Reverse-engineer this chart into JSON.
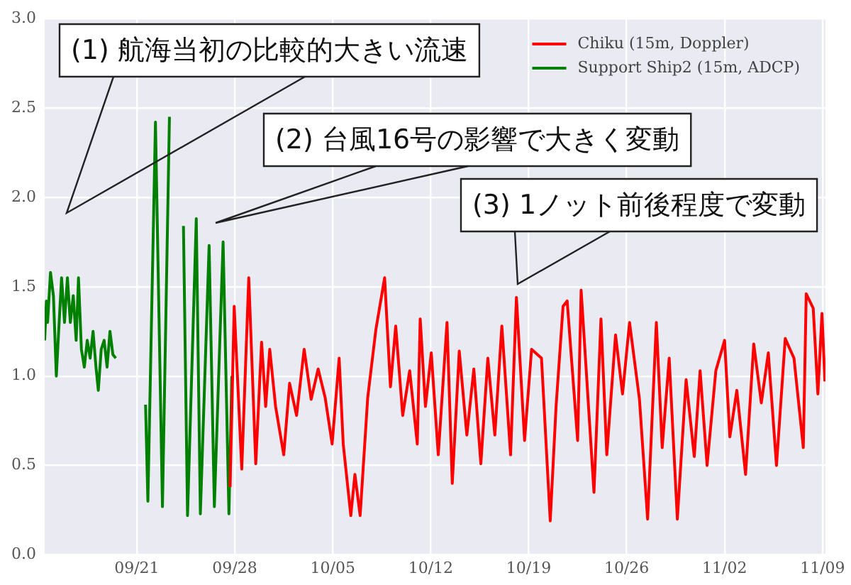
{
  "chart_data": {
    "type": "line",
    "xlim": [
      "--09-14T10:00",
      "--11-09T05:00"
    ],
    "xticks": [
      {
        "value": "--09-21",
        "label": "09/21"
      },
      {
        "value": "--09-28",
        "label": "09/28"
      },
      {
        "value": "--10-05",
        "label": "10/05"
      },
      {
        "value": "--10-12",
        "label": "10/12"
      },
      {
        "value": "--10-19",
        "label": "10/19"
      },
      {
        "value": "--10-26",
        "label": "10/26"
      },
      {
        "value": "--11-02",
        "label": "11/02"
      },
      {
        "value": "--11-09",
        "label": "11/09"
      }
    ],
    "ylim": [
      0,
      3
    ],
    "yticks": [
      {
        "value": 0,
        "label": "0.0"
      },
      {
        "value": 0.5,
        "label": "0.5"
      },
      {
        "value": 1,
        "label": "1.0"
      },
      {
        "value": 1.5,
        "label": "1.5"
      },
      {
        "value": 2,
        "label": "2.0"
      },
      {
        "value": 2.5,
        "label": "2.5"
      },
      {
        "value": 3,
        "label": "3.0"
      }
    ],
    "grid": true,
    "legend": "top right",
    "series": [
      {
        "name": "Chiku (15m, Doppler)",
        "color": "#ff0000",
        "x": [
          "--09-27T16:00",
          "--09-27T23:00",
          "--09-28T12:00",
          "--09-29T00:00",
          "--09-29T12:00",
          "--09-29T22:00",
          "--09-30T05:00",
          "--09-30T12:00",
          "--09-30T22:00",
          "--10-01T12:00",
          "--10-01T22:00",
          "--10-02T10:00",
          "--10-02T23:00",
          "--10-03T11:00",
          "--10-03T23:00",
          "--10-04T11:00",
          "--10-04T23:00",
          "--10-05T11:00",
          "--10-05T18:00",
          "--10-06T07:00",
          "--10-06T14:00",
          "--10-06T23:00",
          "--10-07T12:00",
          "--10-08T02:00",
          "--10-08T17:00",
          "--10-09T03:00",
          "--10-09T12:00",
          "--10-10T00:00",
          "--10-10T12:00",
          "--10-11T01:00",
          "--10-11T06:00",
          "--10-11T15:00",
          "--10-12T01:00",
          "--10-12T13:00",
          "--10-13T04:00",
          "--10-13T13:00",
          "--10-14T01:00",
          "--10-14T14:00",
          "--10-15T02:00",
          "--10-15T14:00",
          "--10-16T02:00",
          "--10-16T14:00",
          "--10-17T02:00",
          "--10-17T17:00",
          "--10-18T03:00",
          "--10-18T17:00",
          "--10-19T05:00",
          "--10-19T22:00",
          "--10-20T13:00",
          "--10-20T23:00",
          "--10-21T11:00",
          "--10-21T18:00",
          "--10-22T12:00",
          "--10-22T18:00",
          "--10-23T16:00",
          "--10-24T04:00",
          "--10-24T14:00",
          "--10-25T05:00",
          "--10-25T17:00",
          "--10-26T05:00",
          "--10-26T22:00",
          "--10-27T12:00",
          "--10-28T03:00",
          "--10-28T13:00",
          "--10-29T01:00",
          "--10-29T15:00",
          "--10-30T06:00",
          "--10-30T20:00",
          "--10-31T06:00",
          "--10-31T18:00",
          "--11-01T09:00",
          "--11-02T00:00",
          "--11-02T09:00",
          "--11-02T21:00",
          "--11-03T12:00",
          "--11-04T02:00",
          "--11-04T15:00",
          "--11-05T03:00",
          "--11-05T17:00",
          "--11-06T08:00",
          "--11-06T23:00",
          "--11-07T15:00",
          "--11-07T20:00",
          "--11-08T08:00",
          "--11-08T16:00",
          "--11-08T23:00",
          "--11-09T04:00"
        ],
        "values": [
          0.38,
          1.39,
          0.48,
          1.55,
          0.51,
          1.19,
          0.83,
          1.15,
          0.83,
          0.56,
          0.96,
          0.78,
          1.15,
          0.87,
          1.04,
          0.88,
          0.62,
          1.1,
          0.62,
          0.22,
          0.45,
          0.22,
          0.88,
          1.26,
          1.55,
          0.94,
          1.28,
          0.78,
          1.03,
          0.62,
          1.32,
          0.83,
          1.13,
          0.56,
          1.3,
          0.4,
          1.14,
          0.67,
          1.04,
          0.51,
          1.1,
          0.67,
          1.28,
          0.56,
          1.44,
          0.64,
          1.15,
          1.1,
          0.19,
          0.83,
          1.39,
          1.42,
          0.64,
          1.48,
          0.35,
          1.32,
          0.56,
          1.23,
          0.9,
          1.3,
          0.87,
          0.2,
          1.3,
          0.6,
          1.1,
          0.2,
          0.98,
          0.55,
          1.03,
          0.5,
          1.03,
          1.2,
          0.66,
          0.92,
          0.45,
          1.18,
          0.85,
          1.13,
          0.5,
          1.21,
          1.1,
          0.6,
          1.46,
          1.38,
          0.9,
          1.35,
          0.97
        ]
      },
      {
        "name": "Support Ship2 (15m, ADCP)",
        "color": "#008000",
        "x": [
          "--09-14T10:00",
          "--09-14T13:00",
          "--09-14T15:00",
          "--09-14T20:00",
          "--09-15T01:00",
          "--09-15T06:00",
          "--09-15T10:00",
          "--09-15T15:00",
          "--09-15T20:00",
          "--09-16T01:00",
          "--09-16T06:00",
          "--09-16T11:00",
          "--09-16T16:00",
          "--09-16T20:00",
          "--09-17T01:00",
          "--09-17T06:00",
          "--09-17T11:00",
          "--09-17T16:00",
          "--09-17T21:00",
          "--09-18T02:00",
          "--09-18T06:00",
          "--09-18T11:00",
          "--09-18T16:00",
          "--09-18T21:00",
          "--09-19T02:00",
          "--09-19T07:00",
          "--09-19T12:00",
          "--09-20T12:00",
          "--09-21T15:00",
          "--09-21T19:00",
          "--09-22T08:00",
          "--09-22T20:00",
          "--09-23T08:00",
          "--09-23T20:00",
          "--09-24T08:00",
          "--09-24T15:00",
          "--09-25T06:00",
          "--09-25T13:00",
          "--09-26T04:00",
          "--09-26T13:00",
          "--09-27T04:00",
          "--09-27T14:00",
          "--09-27T19:00"
        ],
        "values": [
          1.2,
          1.42,
          1.3,
          1.58,
          1.45,
          1.0,
          1.25,
          1.55,
          1.3,
          1.55,
          1.3,
          1.45,
          1.2,
          1.55,
          1.15,
          1.05,
          1.2,
          1.1,
          1.25,
          1.05,
          0.92,
          1.15,
          1.2,
          1.05,
          1.25,
          1.12,
          1.1,
          null,
          0.84,
          0.3,
          2.42,
          0.27,
          2.45,
          null,
          1.84,
          0.22,
          1.88,
          0.23,
          1.73,
          0.27,
          1.75,
          0.23,
          1.0
        ]
      }
    ],
    "annotations": [
      "(1) 航海当初の比較的大きい流速",
      "(2) 台風16号の影響で大きく変動",
      "(3) 1ノット前後程度で変動"
    ]
  }
}
